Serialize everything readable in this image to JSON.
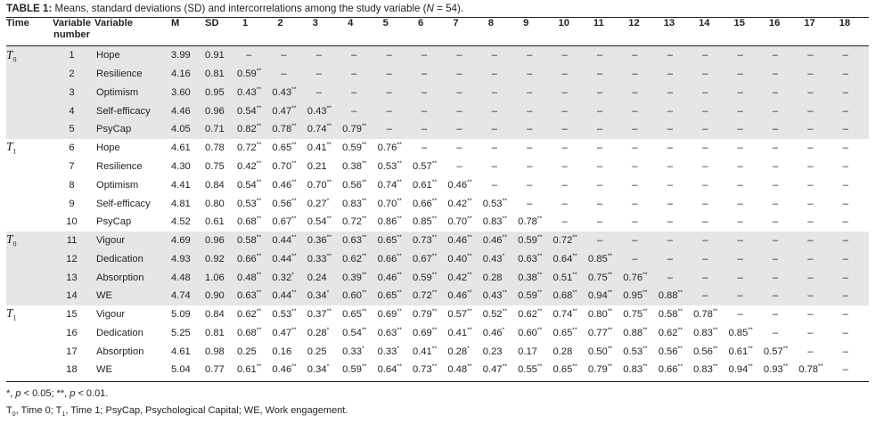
{
  "caption": {
    "label": "TABLE 1:",
    "text": "Means, standard deviations (SD) and intercorrelations among the study variable (N = 54)."
  },
  "headers": [
    "Time",
    "Variable number",
    "Variable",
    "M",
    "SD",
    "1",
    "2",
    "3",
    "4",
    "5",
    "6",
    "7",
    "8",
    "9",
    "10",
    "11",
    "12",
    "13",
    "14",
    "15",
    "16",
    "17",
    "18"
  ],
  "rows": [
    {
      "time": "T0",
      "num": "1",
      "var": "Hope",
      "m": "3.99",
      "sd": "0.91",
      "c": [
        "–",
        "–",
        "–",
        "–",
        "–",
        "–",
        "–",
        "–",
        "–",
        "–",
        "–",
        "–",
        "–",
        "–",
        "–",
        "–",
        "–",
        "–"
      ]
    },
    {
      "time": "",
      "num": "2",
      "var": "Resilience",
      "m": "4.16",
      "sd": "0.81",
      "c": [
        "0.59**",
        "–",
        "–",
        "–",
        "–",
        "–",
        "–",
        "–",
        "–",
        "–",
        "–",
        "–",
        "–",
        "–",
        "–",
        "–",
        "–",
        "–"
      ]
    },
    {
      "time": "",
      "num": "3",
      "var": "Optimism",
      "m": "3.60",
      "sd": "0.95",
      "c": [
        "0.43**",
        "0.43**",
        "–",
        "–",
        "–",
        "–",
        "–",
        "–",
        "–",
        "–",
        "–",
        "–",
        "–",
        "–",
        "–",
        "–",
        "–",
        "–"
      ]
    },
    {
      "time": "",
      "num": "4",
      "var": "Self-efficacy",
      "m": "4.46",
      "sd": "0.96",
      "c": [
        "0.54**",
        "0.47**",
        "0.43**",
        "–",
        "–",
        "–",
        "–",
        "–",
        "–",
        "–",
        "–",
        "–",
        "–",
        "–",
        "–",
        "–",
        "–",
        "–"
      ]
    },
    {
      "time": "",
      "num": "5",
      "var": "PsyCap",
      "m": "4.05",
      "sd": "0.71",
      "c": [
        "0.82**",
        "0.78**",
        "0.74**",
        "0.79**",
        "–",
        "–",
        "–",
        "–",
        "–",
        "–",
        "–",
        "–",
        "–",
        "–",
        "–",
        "–",
        "–",
        "–"
      ]
    },
    {
      "time": "T1",
      "num": "6",
      "var": "Hope",
      "m": "4.61",
      "sd": "0.78",
      "c": [
        "0.72**",
        "0.65**",
        "0.41**",
        "0.59**",
        "0.76**",
        "–",
        "–",
        "–",
        "–",
        "–",
        "–",
        "–",
        "–",
        "–",
        "–",
        "–",
        "–",
        "–"
      ]
    },
    {
      "time": "",
      "num": "7",
      "var": "Resilience",
      "m": "4.30",
      "sd": "0.75",
      "c": [
        "0.42**",
        "0.70**",
        "0.21",
        "0.38**",
        "0.53**",
        "0.57**",
        "–",
        "–",
        "–",
        "–",
        "–",
        "–",
        "–",
        "–",
        "–",
        "–",
        "–",
        "–"
      ]
    },
    {
      "time": "",
      "num": "8",
      "var": "Optimism",
      "m": "4.41",
      "sd": "0.84",
      "c": [
        "0.54**",
        "0.46**",
        "0.70**",
        "0.56**",
        "0.74**",
        "0.61**",
        "0.46**",
        "–",
        "–",
        "–",
        "–",
        "–",
        "–",
        "–",
        "–",
        "–",
        "–",
        "–"
      ]
    },
    {
      "time": "",
      "num": "9",
      "var": "Self-efficacy",
      "m": "4.81",
      "sd": "0.80",
      "c": [
        "0.53**",
        "0.56**",
        "0.27*",
        "0.83**",
        "0.70**",
        "0.66**",
        "0.42**",
        "0.53**",
        "–",
        "–",
        "–",
        "–",
        "–",
        "–",
        "–",
        "–",
        "–",
        "–"
      ]
    },
    {
      "time": "",
      "num": "10",
      "var": "PsyCap",
      "m": "4.52",
      "sd": "0.61",
      "c": [
        "0.68**",
        "0.67**",
        "0.54**",
        "0.72**",
        "0.86**",
        "0.85**",
        "0.70**",
        "0.83**",
        "0.78**",
        "–",
        "–",
        "–",
        "–",
        "–",
        "–",
        "–",
        "–",
        "–"
      ]
    },
    {
      "time": "T0",
      "num": "11",
      "var": "Vigour",
      "m": "4.69",
      "sd": "0.96",
      "c": [
        "0.58**",
        "0.44**",
        "0.36**",
        "0.63**",
        "0.65**",
        "0.73**",
        "0.46**",
        "0.46**",
        "0.59**",
        "0.72**",
        "–",
        "–",
        "–",
        "–",
        "–",
        "–",
        "–",
        "–"
      ]
    },
    {
      "time": "",
      "num": "12",
      "var": "Dedication",
      "m": "4.93",
      "sd": "0.92",
      "c": [
        "0.66**",
        "0.44**",
        "0.33**",
        "0.62**",
        "0.66**",
        "0.67**",
        "0.40**",
        "0.43*",
        "0.63**",
        "0.64**",
        "0.85**",
        "–",
        "–",
        "–",
        "–",
        "–",
        "–",
        "–"
      ]
    },
    {
      "time": "",
      "num": "13",
      "var": "Absorption",
      "m": "4.48",
      "sd": "1.06",
      "c": [
        "0.48**",
        "0.32*",
        "0.24",
        "0.39**",
        "0.46**",
        "0.59**",
        "0.42**",
        "0.28",
        "0.38**",
        "0.51**",
        "0.75**",
        "0.76**",
        "–",
        "–",
        "–",
        "–",
        "–",
        "–"
      ]
    },
    {
      "time": "",
      "num": "14",
      "var": "WE",
      "m": "4.74",
      "sd": "0.90",
      "c": [
        "0.63**",
        "0.44**",
        "0.34*",
        "0.60**",
        "0.65**",
        "0.72**",
        "0.46**",
        "0.43**",
        "0.59**",
        "0.68**",
        "0.94**",
        "0.95**",
        "0.88**",
        "–",
        "–",
        "–",
        "–",
        "–"
      ]
    },
    {
      "time": "T1",
      "num": "15",
      "var": "Vigour",
      "m": "5.09",
      "sd": "0.84",
      "c": [
        "0.62**",
        "0.53**",
        "0.37**",
        "0.65**",
        "0.69**",
        "0.79**",
        "0.57**",
        "0.52**",
        "0.62**",
        "0.74**",
        "0.80**",
        "0.75**",
        "0.58**",
        "0.78**",
        "–",
        "–",
        "–",
        "–"
      ]
    },
    {
      "time": "",
      "num": "16",
      "var": "Dedication",
      "m": "5.25",
      "sd": "0.81",
      "c": [
        "0.68**",
        "0.47**",
        "0.28*",
        "0.54**",
        "0.63**",
        "0.69**",
        "0.41**",
        "0.46*",
        "0.60**",
        "0.65**",
        "0.77**",
        "0.88**",
        "0.62**",
        "0.83**",
        "0.85**",
        "–",
        "–",
        "–"
      ]
    },
    {
      "time": "",
      "num": "17",
      "var": "Absorption",
      "m": "4.61",
      "sd": "0.98",
      "c": [
        "0.25",
        "0.16",
        "0.25",
        "0.33*",
        "0.33*",
        "0.41**",
        "0.28*",
        "0.23",
        "0.17",
        "0.28",
        "0.50**",
        "0.53**",
        "0.56**",
        "0.56**",
        "0.61**",
        "0.57**",
        "–",
        "–"
      ]
    },
    {
      "time": "",
      "num": "18",
      "var": "WE",
      "m": "5.04",
      "sd": "0.77",
      "c": [
        "0.61**",
        "0.46**",
        "0.34*",
        "0.59**",
        "0.64**",
        "0.73**",
        "0.48**",
        "0.47**",
        "0.55**",
        "0.65**",
        "0.79**",
        "0.83**",
        "0.66**",
        "0.83**",
        "0.94**",
        "0.93**",
        "0.78**",
        "–"
      ]
    }
  ],
  "footnotes": {
    "line1": "*, p < 0.05; **, p < 0.01.",
    "line2": "T0, Time 0; T1, Time 1; PsyCap, Psychological Capital; WE, Work engagement."
  }
}
